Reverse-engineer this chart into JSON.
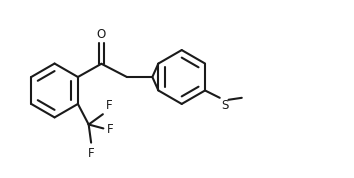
{
  "bg_color": "#ffffff",
  "line_color": "#1a1a1a",
  "lw": 1.5,
  "fig_width": 3.54,
  "fig_height": 1.78,
  "dpi": 100,
  "r": 0.55,
  "xlim": [
    0.0,
    7.2
  ],
  "ylim": [
    -1.6,
    1.3
  ]
}
